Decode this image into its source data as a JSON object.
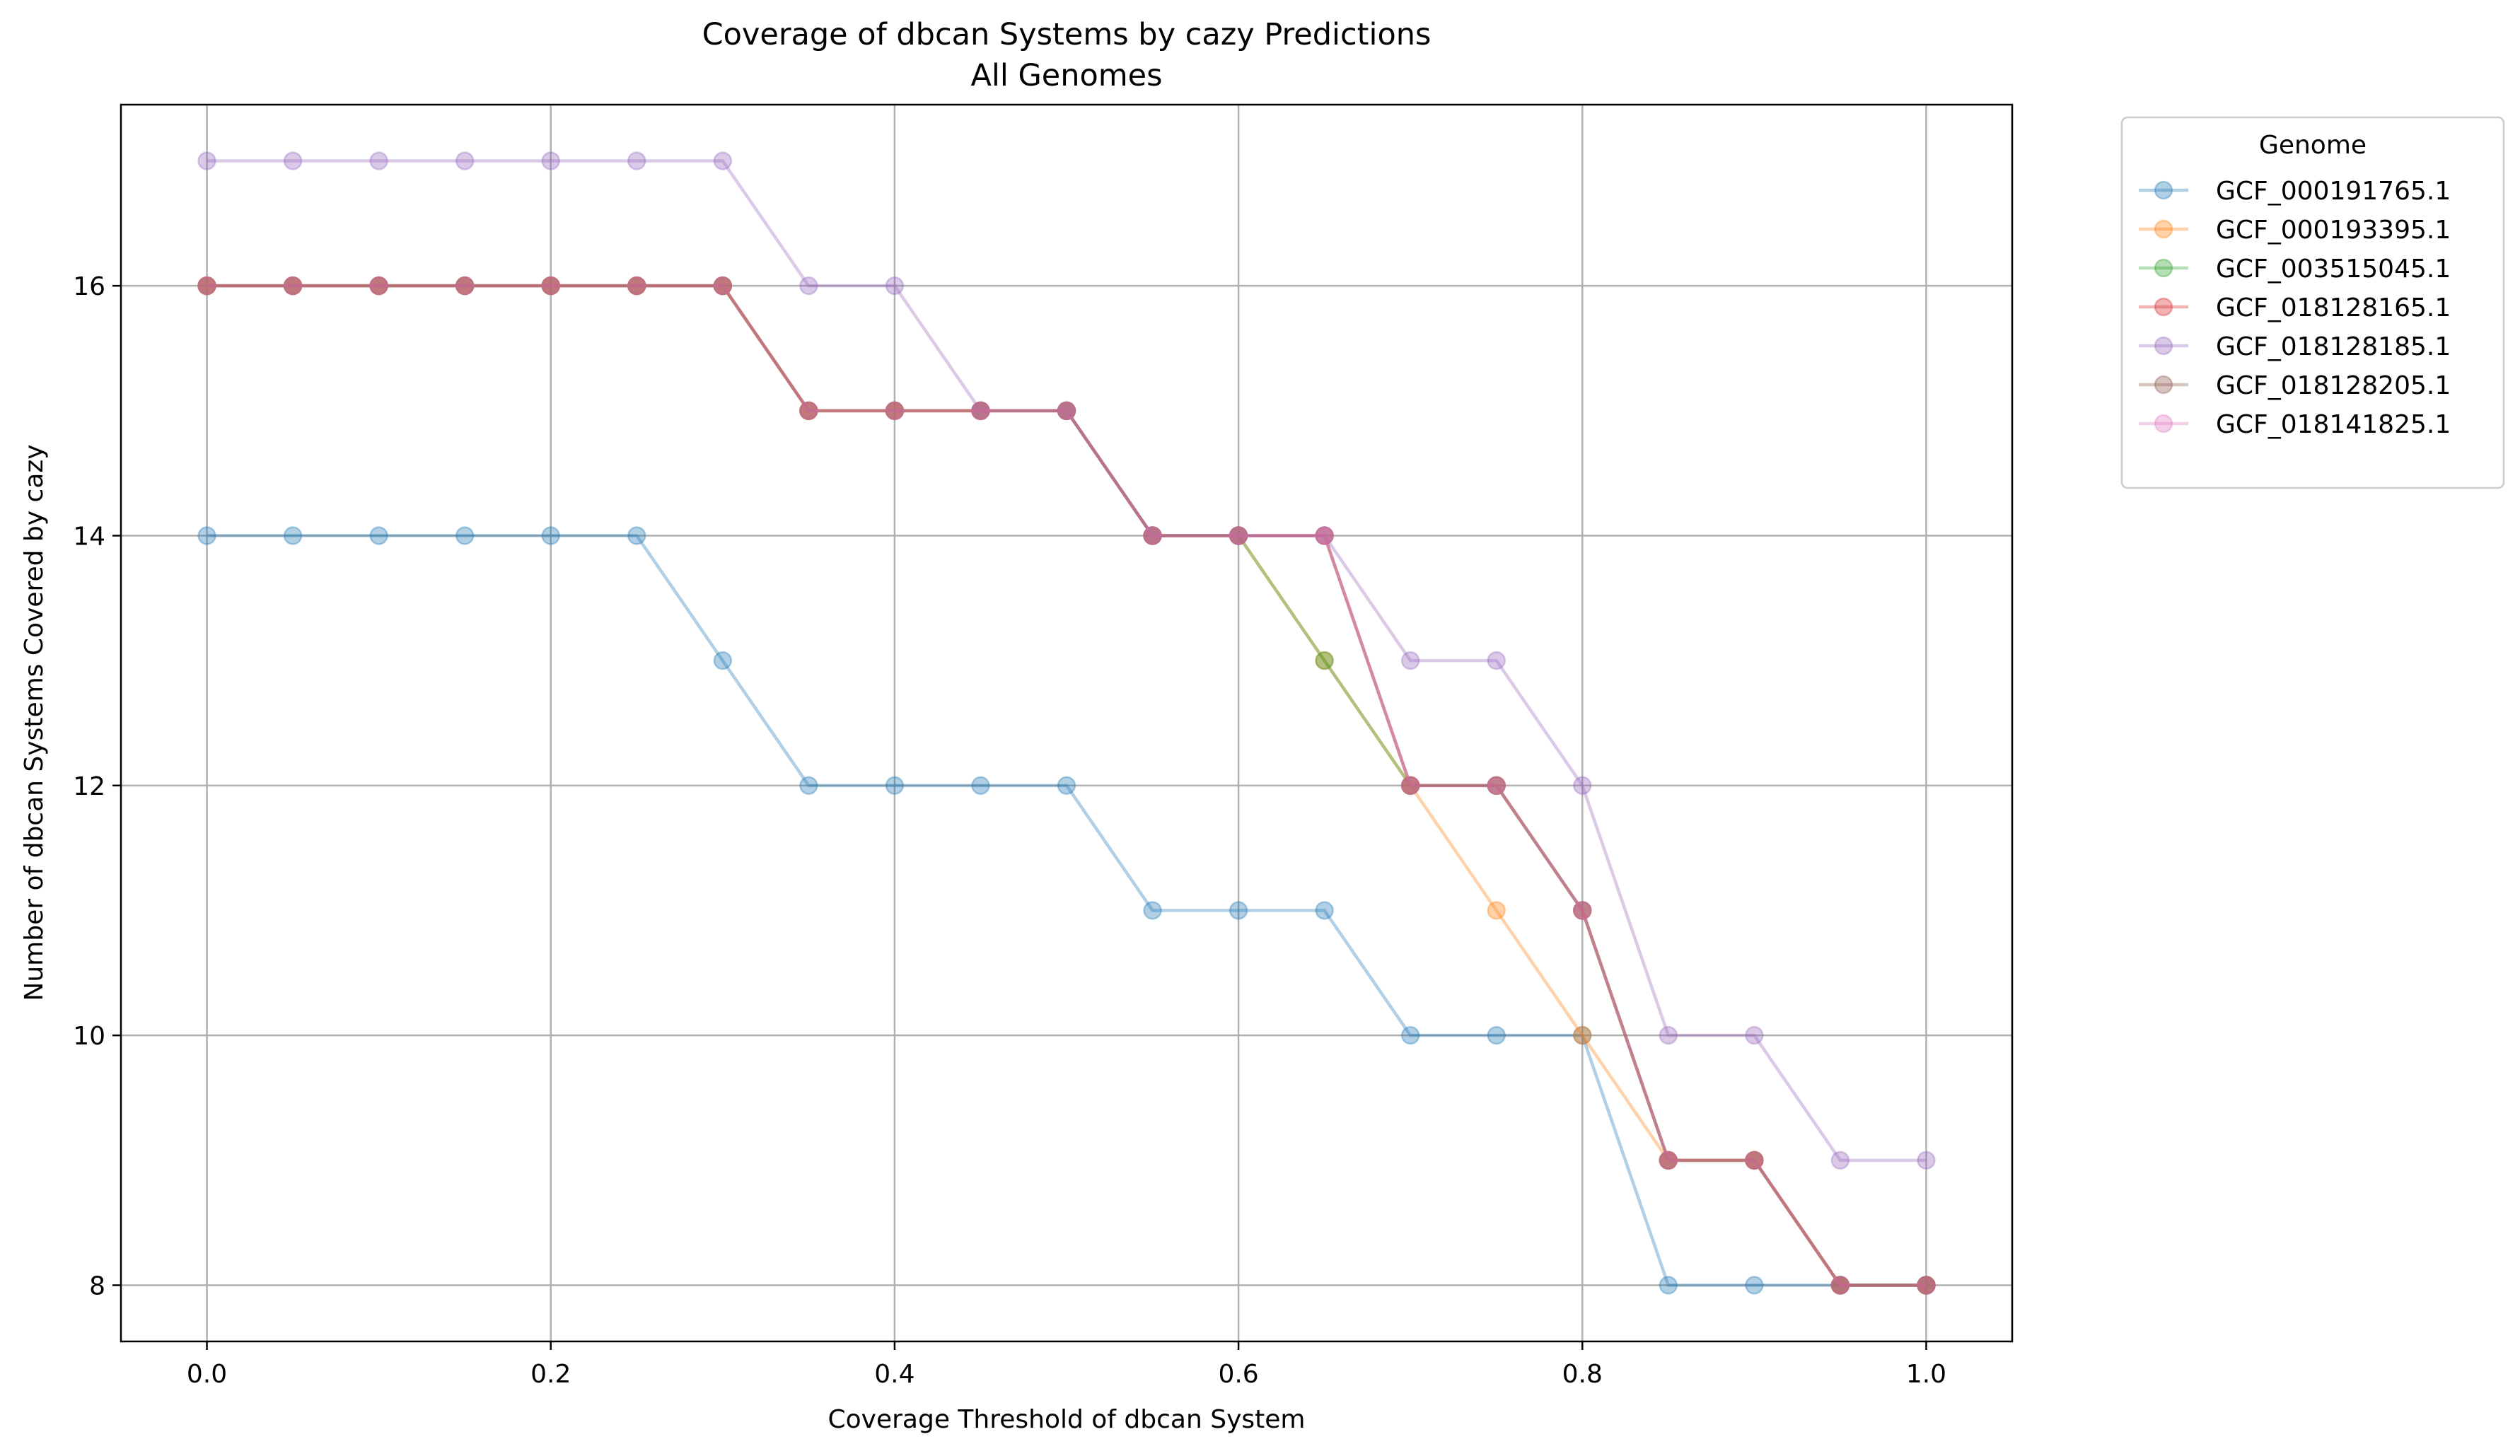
{
  "chart_data": {
    "type": "line",
    "title": "Coverage of dbcan Systems by cazy Predictions",
    "subtitle": "All Genomes",
    "xlabel": "Coverage Threshold of dbcan System",
    "ylabel": "Number of dbcan Systems Covered by cazy",
    "xlim": [
      -0.05,
      1.05
    ],
    "ylim": [
      7.55,
      17.45
    ],
    "xticks": [
      "0.0",
      "0.2",
      "0.4",
      "0.6",
      "0.8",
      "1.0"
    ],
    "xtick_values": [
      0.0,
      0.2,
      0.4,
      0.6,
      0.8,
      1.0
    ],
    "yticks": [
      "8",
      "10",
      "12",
      "14",
      "16"
    ],
    "ytick_values": [
      8,
      10,
      12,
      14,
      16
    ],
    "grid": true,
    "legend_title": "Genome",
    "legend_position": "outside-top-right",
    "x": [
      0.0,
      0.05,
      0.1,
      0.15,
      0.2,
      0.25,
      0.3,
      0.35,
      0.4,
      0.45,
      0.5,
      0.55,
      0.6,
      0.65,
      0.7,
      0.75,
      0.8,
      0.85,
      0.9,
      0.95,
      1.0
    ],
    "series": [
      {
        "name": "GCF_000191765.1",
        "color": "#1f77b4",
        "values": [
          14,
          14,
          14,
          14,
          14,
          14,
          13,
          12,
          12,
          12,
          12,
          11,
          11,
          11,
          10,
          10,
          10,
          8,
          8,
          8,
          8
        ]
      },
      {
        "name": "GCF_000193395.1",
        "color": "#ff7f0e",
        "values": [
          16,
          16,
          16,
          16,
          16,
          16,
          16,
          15,
          15,
          15,
          15,
          14,
          14,
          13,
          12,
          11,
          10,
          9,
          9,
          8,
          8
        ]
      },
      {
        "name": "GCF_003515045.1",
        "color": "#2ca02c",
        "values": [
          16,
          16,
          16,
          16,
          16,
          16,
          16,
          15,
          15,
          15,
          15,
          14,
          14,
          13,
          12,
          12,
          11,
          9,
          9,
          8,
          8
        ]
      },
      {
        "name": "GCF_018128165.1",
        "color": "#d62728",
        "values": [
          16,
          16,
          16,
          16,
          16,
          16,
          16,
          15,
          15,
          15,
          15,
          14,
          14,
          14,
          12,
          12,
          11,
          9,
          9,
          8,
          8
        ]
      },
      {
        "name": "GCF_018128185.1",
        "color": "#9467bd",
        "values": [
          17,
          17,
          17,
          17,
          17,
          17,
          17,
          16,
          16,
          15,
          15,
          14,
          14,
          14,
          13,
          13,
          12,
          10,
          10,
          9,
          9
        ]
      },
      {
        "name": "GCF_018128205.1",
        "color": "#8c564b",
        "values": [
          16,
          16,
          16,
          16,
          16,
          16,
          16,
          15,
          15,
          15,
          15,
          14,
          14,
          14,
          12,
          12,
          11,
          9,
          9,
          8,
          8
        ]
      },
      {
        "name": "GCF_018141825.1",
        "color": "#e377c2",
        "values": [
          16,
          16,
          16,
          16,
          16,
          16,
          16,
          15,
          15,
          15,
          15,
          14,
          14,
          14,
          12,
          12,
          11,
          9,
          9,
          8,
          8
        ]
      }
    ]
  }
}
